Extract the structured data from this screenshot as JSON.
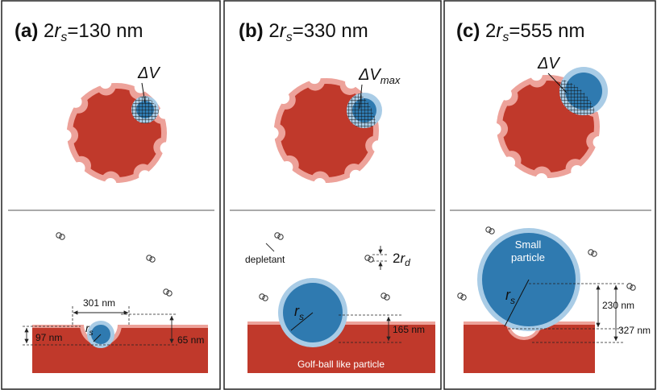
{
  "panels": [
    {
      "label": "(a)",
      "title": {
        "prefix": "2",
        "var": "r",
        "sub": "s",
        "suffix": "=130 nm"
      },
      "annotation": {
        "text": "ΔV"
      },
      "width_label": "301 nm",
      "depth_label": "97 nm",
      "gap_label": "65 nm",
      "radius_label": {
        "var": "r",
        "sub": "s"
      }
    },
    {
      "label": "(b)",
      "title": {
        "prefix": "2",
        "var": "r",
        "sub": "s",
        "suffix": "=330 nm"
      },
      "annotation": {
        "text": "ΔV",
        "sub": "max"
      },
      "depletant_label": "depletant",
      "depletant_size": {
        "prefix": "2",
        "var": "r",
        "sub": "d"
      },
      "radius_label": {
        "var": "r",
        "sub": "s"
      },
      "gap_label": "165 nm",
      "slab_label": "Golf-ball like particle"
    },
    {
      "label": "(c)",
      "title": {
        "prefix": "2",
        "var": "r",
        "sub": "s",
        "suffix": "=555 nm"
      },
      "annotation": {
        "text": "ΔV"
      },
      "particle_label": [
        "Small",
        "particle"
      ],
      "radius_label": {
        "var": "r",
        "sub": "s"
      },
      "gap_label": "230 nm",
      "depth_label": "327 nm"
    }
  ]
}
